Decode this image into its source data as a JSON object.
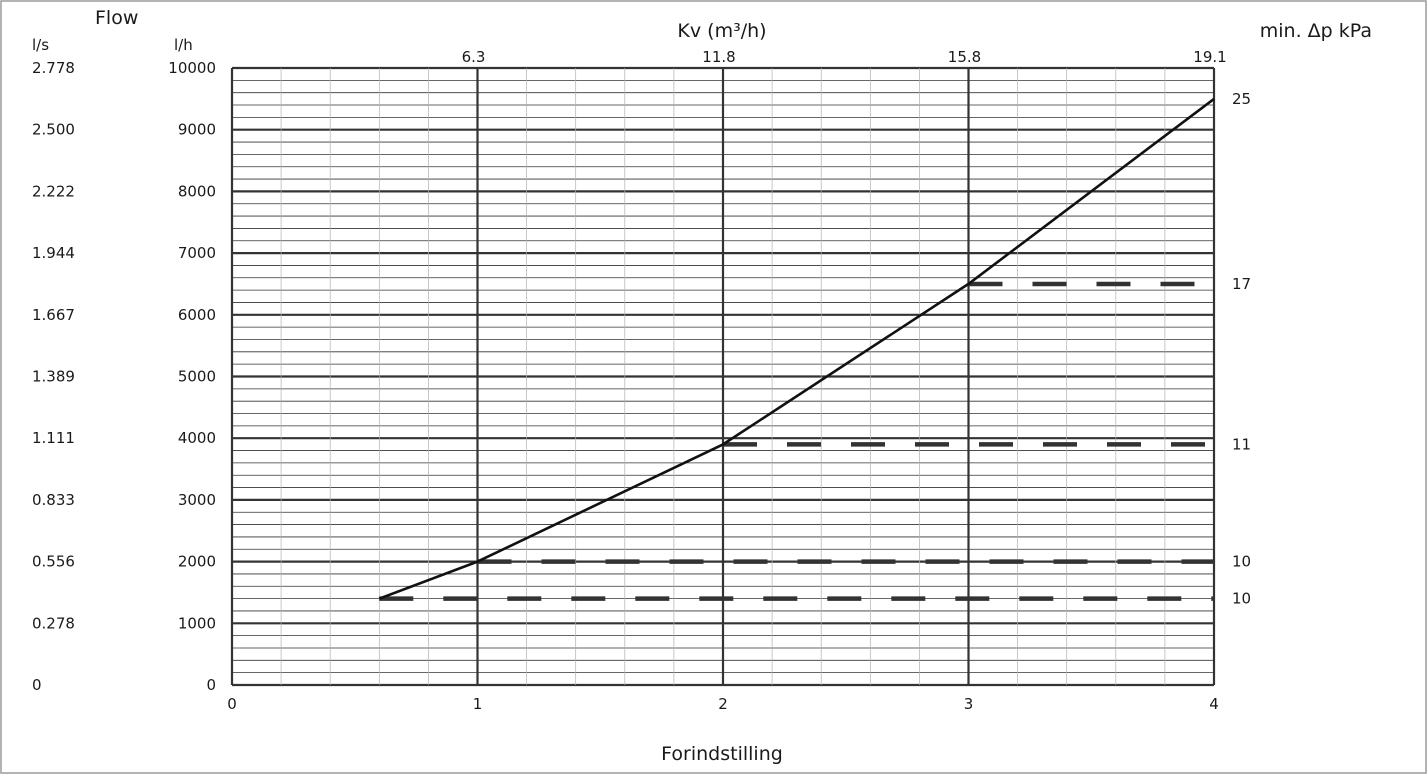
{
  "chart_data": {
    "type": "line",
    "title": "",
    "flow_label": "Flow",
    "xlabel": "Forindstilling",
    "ylabel_left_outer": "l/s",
    "ylabel_left_inner": "l/h",
    "xlabel_top": "Kv (m³/h)",
    "ylabel_right": "min. Δp kPa",
    "xlim": [
      0,
      4
    ],
    "ylim": [
      0,
      10000
    ],
    "x_ticks": [
      "0",
      "1",
      "2",
      "3",
      "4"
    ],
    "y_ticks": [
      "0",
      "1000",
      "2000",
      "3000",
      "4000",
      "5000",
      "6000",
      "7000",
      "8000",
      "9000",
      "10000"
    ],
    "y_ticks_ls": [
      "0",
      "0.278",
      "0.556",
      "0.833",
      "1.111",
      "1.389",
      "1.667",
      "1.944",
      "2.222",
      "2.500",
      "2.778"
    ],
    "kv_ticks": [
      {
        "x": 1,
        "label": "6.3"
      },
      {
        "x": 2,
        "label": "11.8"
      },
      {
        "x": 3,
        "label": "15.8"
      },
      {
        "x": 4,
        "label": "19.1"
      }
    ],
    "grid": true,
    "series": [
      {
        "style": "solid",
        "points": [
          [
            0.6,
            1400
          ],
          [
            1,
            2000
          ],
          [
            2,
            3900
          ],
          [
            3,
            6500
          ],
          [
            4,
            9500
          ]
        ]
      }
    ],
    "dp_lines": [
      {
        "x_start": 0.6,
        "x_end": 4,
        "y": 1400,
        "label": "10"
      },
      {
        "x_start": 1,
        "x_end": 4,
        "y": 2000,
        "label": "10"
      },
      {
        "x_start": 2,
        "x_end": 4,
        "y": 3900,
        "label": "11"
      },
      {
        "x_start": 3,
        "x_end": 4,
        "y": 6500,
        "label": "17"
      },
      {
        "x_start": 4,
        "x_end": 4,
        "y": 9500,
        "label": "25"
      }
    ],
    "colors": {
      "line": "#111111",
      "grid": "#333333",
      "dash": "#333333",
      "frame": "#9a9a9a"
    }
  }
}
